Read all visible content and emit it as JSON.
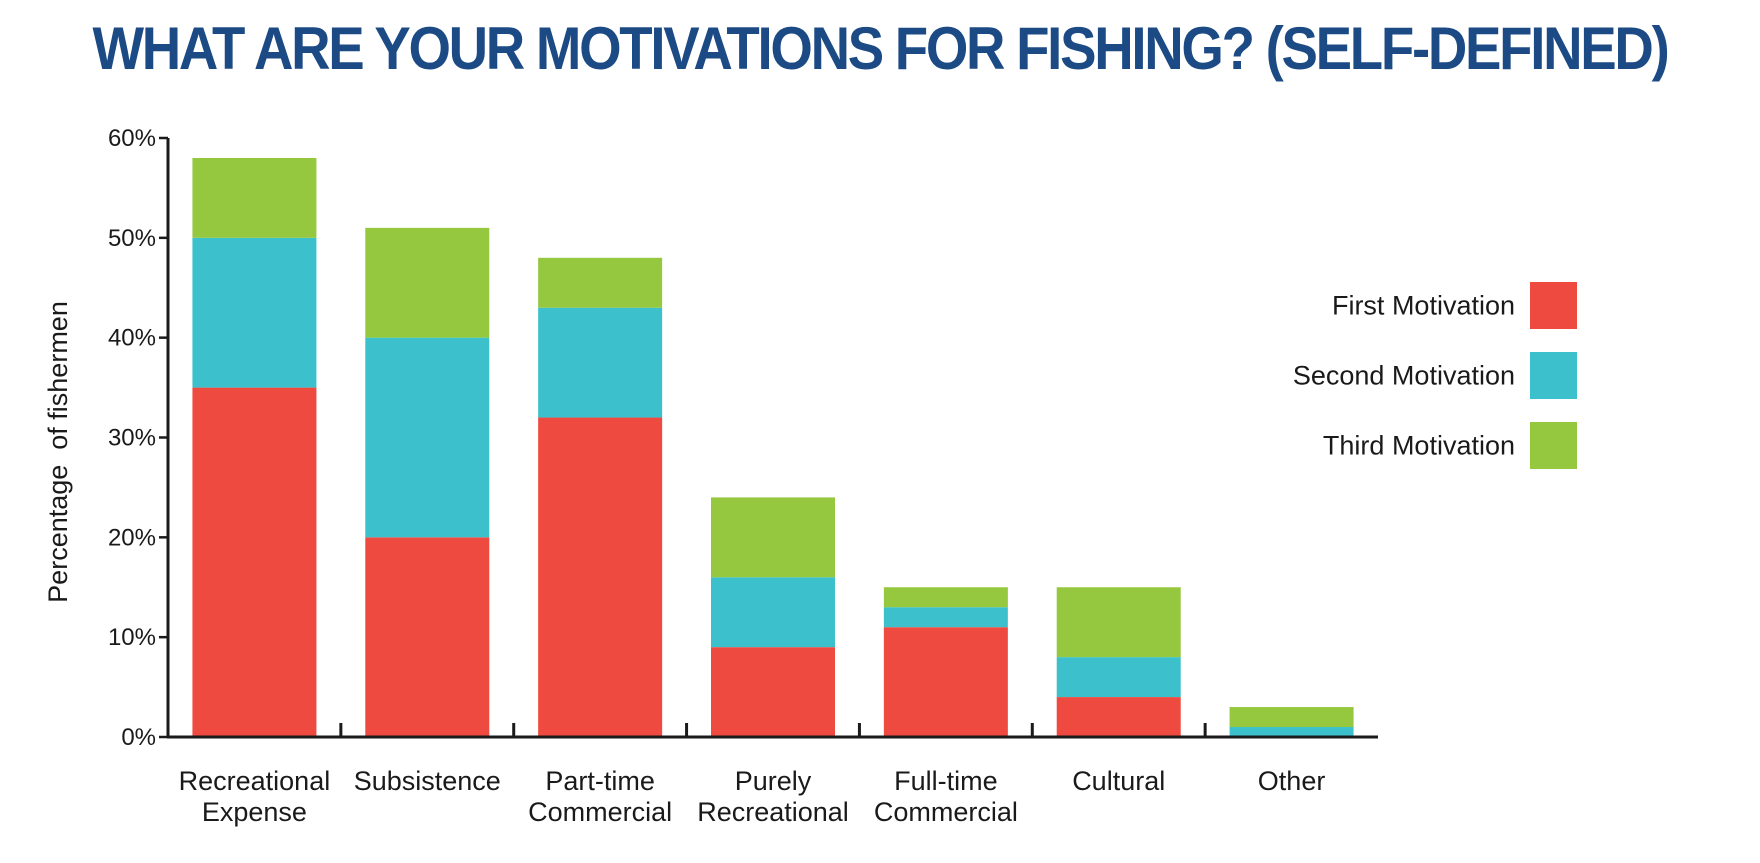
{
  "chart_data": {
    "type": "bar",
    "stacked": true,
    "title": "WHAT ARE YOUR MOTIVATIONS FOR FISHING? (SELF-DEFINED)",
    "xlabel": "",
    "ylabel": "Percentage  of fishermen",
    "ylim": [
      0,
      60
    ],
    "yticks": [
      "0%",
      "10%",
      "20%",
      "30%",
      "40%",
      "50%",
      "60%"
    ],
    "grid": false,
    "legend_position": "right",
    "categories": [
      [
        "Recreational",
        "Expense"
      ],
      [
        "Subsistence"
      ],
      [
        "Part-time",
        "Commercial"
      ],
      [
        "Purely",
        "Recreational"
      ],
      [
        "Full-time",
        "Commercial"
      ],
      [
        "Cultural"
      ],
      [
        "Other"
      ]
    ],
    "series": [
      {
        "name": "First Motivation",
        "color": "#ef4a40",
        "values": [
          35,
          20,
          32,
          9,
          11,
          4,
          0
        ]
      },
      {
        "name": "Second Motivation",
        "color": "#3cc1cc",
        "values": [
          15,
          20,
          11,
          7,
          2,
          4,
          1
        ]
      },
      {
        "name": "Third Motivation",
        "color": "#95c83e",
        "values": [
          8,
          11,
          5,
          8,
          2,
          7,
          2
        ]
      }
    ]
  }
}
